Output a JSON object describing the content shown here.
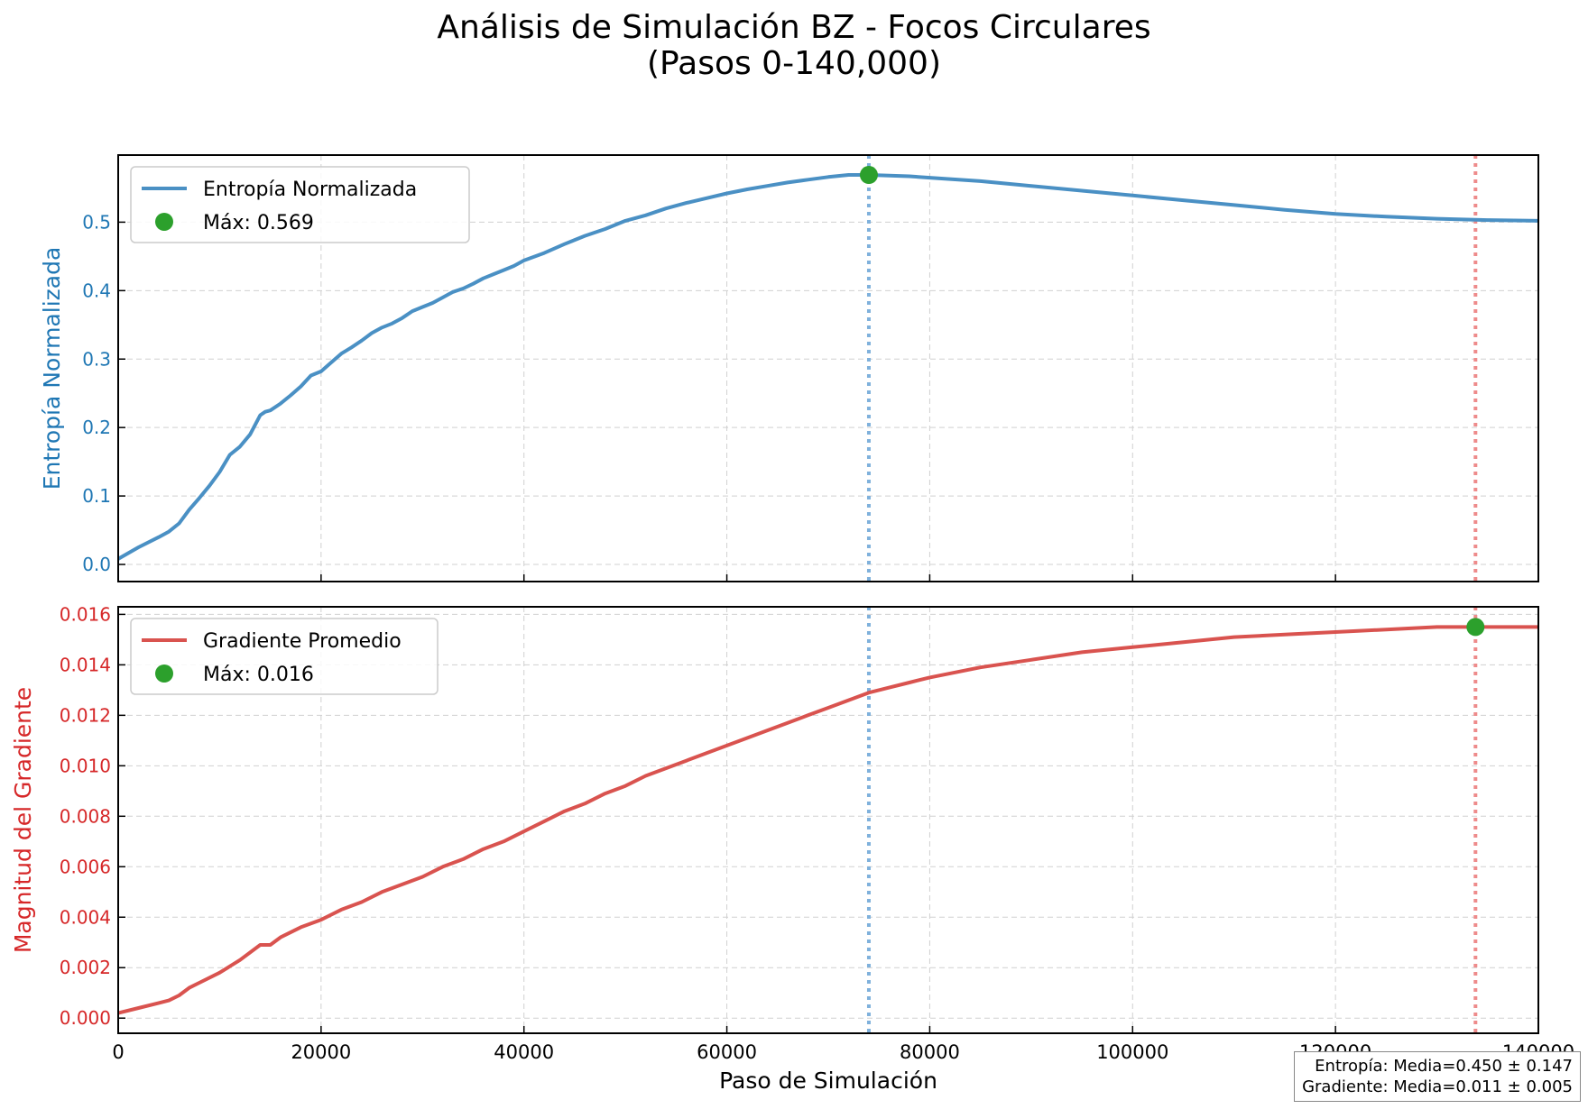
{
  "title": {
    "line1": "Análisis de Simulación BZ - Focos Circulares",
    "line2": "(Pasos 0-140,000)"
  },
  "colors": {
    "entropy": "#1f77b4",
    "entropy_line": "#4a90c4",
    "gradient": "#d62728",
    "gradient_line": "#d9534f",
    "max_marker": "#2ca02c",
    "vline_entropy": "#7fb1dc",
    "vline_gradient": "#ee8b8b"
  },
  "stats": {
    "entropy": "Entropía: Media=0.450 ± 0.147",
    "gradient": "Gradiente: Media=0.011 ± 0.005"
  },
  "chart_data": [
    {
      "type": "line",
      "ylabel": "Entropía Normalizada",
      "xlabel": "",
      "xlim": [
        0,
        140000
      ],
      "ylim": [
        -0.025,
        0.598
      ],
      "yticks": [
        0.0,
        0.1,
        0.2,
        0.3,
        0.4,
        0.5
      ],
      "ytick_labels": [
        "0.0",
        "0.1",
        "0.2",
        "0.3",
        "0.4",
        "0.5"
      ],
      "grid": true,
      "legend_position": "top-left",
      "series": [
        {
          "name": "Entropía Normalizada",
          "x": [
            0,
            2000,
            4000,
            5000,
            6000,
            7000,
            8000,
            9000,
            10000,
            11000,
            12000,
            13000,
            14000,
            14500,
            15000,
            16000,
            17000,
            18000,
            19000,
            20000,
            21000,
            22000,
            23000,
            24000,
            25000,
            26000,
            27000,
            28000,
            29000,
            30000,
            31000,
            32000,
            33000,
            34000,
            35000,
            36000,
            37000,
            38000,
            39000,
            40000,
            42000,
            44000,
            46000,
            48000,
            50000,
            52000,
            54000,
            56000,
            58000,
            60000,
            62000,
            64000,
            66000,
            68000,
            70000,
            72000,
            74000,
            76000,
            78000,
            80000,
            85000,
            90000,
            95000,
            100000,
            105000,
            110000,
            115000,
            120000,
            125000,
            130000,
            135000,
            140000
          ],
          "y": [
            0.008,
            0.025,
            0.04,
            0.048,
            0.06,
            0.08,
            0.097,
            0.115,
            0.135,
            0.16,
            0.172,
            0.19,
            0.218,
            0.223,
            0.225,
            0.235,
            0.247,
            0.26,
            0.276,
            0.282,
            0.295,
            0.308,
            0.317,
            0.327,
            0.338,
            0.346,
            0.352,
            0.36,
            0.37,
            0.376,
            0.382,
            0.39,
            0.398,
            0.403,
            0.41,
            0.418,
            0.424,
            0.43,
            0.436,
            0.444,
            0.455,
            0.468,
            0.48,
            0.49,
            0.502,
            0.51,
            0.52,
            0.528,
            0.535,
            0.542,
            0.548,
            0.553,
            0.558,
            0.562,
            0.566,
            0.569,
            0.569,
            0.568,
            0.567,
            0.565,
            0.56,
            0.553,
            0.546,
            0.539,
            0.532,
            0.525,
            0.518,
            0.512,
            0.508,
            0.505,
            0.503,
            0.502
          ]
        }
      ],
      "max_marker": {
        "label": "Máx: 0.569",
        "x": 74000,
        "y": 0.569
      },
      "vlines": [
        74000,
        133800
      ]
    },
    {
      "type": "line",
      "ylabel": "Magnitud del Gradiente",
      "xlabel": "Paso de Simulación",
      "xlim": [
        0,
        140000
      ],
      "ylim": [
        -0.0006,
        0.0163
      ],
      "xticks": [
        0,
        20000,
        40000,
        60000,
        80000,
        100000,
        120000,
        140000
      ],
      "xtick_labels": [
        "0",
        "20000",
        "40000",
        "60000",
        "80000",
        "100000",
        "120000",
        "140000"
      ],
      "yticks": [
        0.0,
        0.002,
        0.004,
        0.006,
        0.008,
        0.01,
        0.012,
        0.014,
        0.016
      ],
      "ytick_labels": [
        "0.000",
        "0.002",
        "0.004",
        "0.006",
        "0.008",
        "0.010",
        "0.012",
        "0.014",
        "0.016"
      ],
      "grid": true,
      "legend_position": "top-left",
      "series": [
        {
          "name": "Gradiente Promedio",
          "x": [
            0,
            2000,
            4000,
            5000,
            6000,
            7000,
            8000,
            10000,
            12000,
            14000,
            15000,
            16000,
            18000,
            20000,
            22000,
            24000,
            26000,
            28000,
            30000,
            32000,
            34000,
            36000,
            38000,
            40000,
            42000,
            44000,
            46000,
            48000,
            50000,
            52000,
            54000,
            56000,
            58000,
            60000,
            62000,
            64000,
            66000,
            68000,
            70000,
            72000,
            74000,
            76000,
            78000,
            80000,
            85000,
            90000,
            95000,
            100000,
            105000,
            110000,
            115000,
            120000,
            125000,
            130000,
            133800,
            135000,
            140000
          ],
          "y": [
            0.0002,
            0.0004,
            0.0006,
            0.0007,
            0.0009,
            0.0012,
            0.0014,
            0.0018,
            0.0023,
            0.0029,
            0.0029,
            0.0032,
            0.0036,
            0.0039,
            0.0043,
            0.0046,
            0.005,
            0.0053,
            0.0056,
            0.006,
            0.0063,
            0.0067,
            0.007,
            0.0074,
            0.0078,
            0.0082,
            0.0085,
            0.0089,
            0.0092,
            0.0096,
            0.0099,
            0.0102,
            0.0105,
            0.0108,
            0.0111,
            0.0114,
            0.0117,
            0.012,
            0.0123,
            0.0126,
            0.0129,
            0.0131,
            0.0133,
            0.0135,
            0.0139,
            0.0142,
            0.0145,
            0.0147,
            0.0149,
            0.0151,
            0.0152,
            0.0153,
            0.0154,
            0.0155,
            0.0155,
            0.0155,
            0.0155
          ]
        }
      ],
      "max_marker": {
        "label": "Máx: 0.016",
        "x": 133800,
        "y": 0.0155
      },
      "vlines": [
        74000,
        133800
      ]
    }
  ]
}
